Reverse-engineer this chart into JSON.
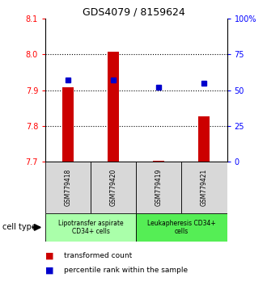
{
  "title": "GDS4079 / 8159624",
  "samples": [
    "GSM779418",
    "GSM779420",
    "GSM779419",
    "GSM779421"
  ],
  "bar_bottoms": [
    7.7,
    7.7,
    7.7,
    7.7
  ],
  "bar_tops": [
    7.908,
    8.007,
    7.702,
    7.826
  ],
  "percentile_values": [
    57,
    57,
    52,
    55
  ],
  "ylim": [
    7.7,
    8.1
  ],
  "yticks_left": [
    7.7,
    7.8,
    7.9,
    8.0,
    8.1
  ],
  "yticks_right": [
    0,
    25,
    50,
    75,
    100
  ],
  "bar_color": "#cc0000",
  "dot_color": "#0000cc",
  "cell_type_groups": [
    {
      "label": "Lipotransfer aspirate\nCD34+ cells",
      "samples": [
        0,
        1
      ],
      "color": "#aaffaa"
    },
    {
      "label": "Leukapheresis CD34+\ncells",
      "samples": [
        2,
        3
      ],
      "color": "#55ee55"
    }
  ],
  "legend_bar_label": "transformed count",
  "legend_dot_label": "percentile rank within the sample",
  "cell_type_label": "cell type",
  "bg_color": "#ffffff",
  "plot_bg": "#ffffff",
  "x_positions": [
    0,
    1,
    2,
    3
  ],
  "bar_width": 0.25
}
